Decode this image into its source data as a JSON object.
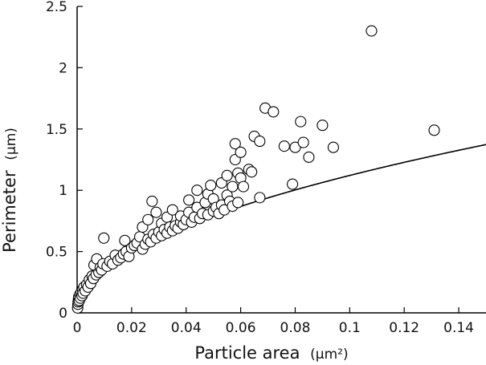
{
  "chart_data": {
    "type": "scatter",
    "title": "",
    "xlabel": "Particle area",
    "xlabel_unit": "(µm²)",
    "ylabel": "Perimeter",
    "ylabel_unit": "(µm)",
    "xlim": [
      0,
      0.15
    ],
    "ylim": [
      0,
      2.5
    ],
    "x_ticks": [
      0,
      0.02,
      0.04,
      0.06,
      0.08,
      0.1,
      0.12,
      0.14
    ],
    "x_tick_labels": [
      "0",
      "0.02",
      "0.04",
      "0.06",
      "0.08",
      "0.1",
      "0.12",
      "0.14"
    ],
    "y_ticks": [
      0,
      0.5,
      1,
      1.5,
      2,
      2.5
    ],
    "y_tick_labels": [
      "0",
      "0.5",
      "1",
      "1.5",
      "2",
      "2.5"
    ],
    "grid": false,
    "series": [
      {
        "marker": "open-circle",
        "points": [
          [
            0.0002,
            0.04
          ],
          [
            0.0003,
            0.07
          ],
          [
            0.0004,
            0.09
          ],
          [
            0.0005,
            0.11
          ],
          [
            0.0006,
            0.13
          ],
          [
            0.0008,
            0.1
          ],
          [
            0.001,
            0.15
          ],
          [
            0.0012,
            0.12
          ],
          [
            0.0015,
            0.17
          ],
          [
            0.0018,
            0.14
          ],
          [
            0.002,
            0.19
          ],
          [
            0.0022,
            0.16
          ],
          [
            0.0025,
            0.21
          ],
          [
            0.003,
            0.18
          ],
          [
            0.0035,
            0.23
          ],
          [
            0.004,
            0.21
          ],
          [
            0.0045,
            0.27
          ],
          [
            0.005,
            0.24
          ],
          [
            0.0055,
            0.3
          ],
          [
            0.006,
            0.28
          ],
          [
            0.0062,
            0.39
          ],
          [
            0.007,
            0.31
          ],
          [
            0.0072,
            0.44
          ],
          [
            0.008,
            0.33
          ],
          [
            0.0085,
            0.37
          ],
          [
            0.009,
            0.35
          ],
          [
            0.0095,
            0.4
          ],
          [
            0.0098,
            0.61
          ],
          [
            0.011,
            0.38
          ],
          [
            0.012,
            0.42
          ],
          [
            0.013,
            0.4
          ],
          [
            0.014,
            0.47
          ],
          [
            0.015,
            0.43
          ],
          [
            0.016,
            0.45
          ],
          [
            0.017,
            0.48
          ],
          [
            0.0175,
            0.59
          ],
          [
            0.018,
            0.5
          ],
          [
            0.019,
            0.46
          ],
          [
            0.02,
            0.53
          ],
          [
            0.021,
            0.55
          ],
          [
            0.022,
            0.57
          ],
          [
            0.023,
            0.62
          ],
          [
            0.024,
            0.52
          ],
          [
            0.024,
            0.7
          ],
          [
            0.025,
            0.56
          ],
          [
            0.026,
            0.6
          ],
          [
            0.026,
            0.76
          ],
          [
            0.027,
            0.58
          ],
          [
            0.0275,
            0.91
          ],
          [
            0.028,
            0.64
          ],
          [
            0.029,
            0.61
          ],
          [
            0.029,
            0.82
          ],
          [
            0.03,
            0.66
          ],
          [
            0.031,
            0.63
          ],
          [
            0.031,
            0.73
          ],
          [
            0.032,
            0.68
          ],
          [
            0.033,
            0.65
          ],
          [
            0.033,
            0.78
          ],
          [
            0.034,
            0.7
          ],
          [
            0.035,
            0.67
          ],
          [
            0.035,
            0.84
          ],
          [
            0.036,
            0.71
          ],
          [
            0.037,
            0.69
          ],
          [
            0.038,
            0.74
          ],
          [
            0.038,
            0.79
          ],
          [
            0.039,
            0.72
          ],
          [
            0.04,
            0.76
          ],
          [
            0.041,
            0.82
          ],
          [
            0.041,
            0.92
          ],
          [
            0.042,
            0.74
          ],
          [
            0.043,
            0.78
          ],
          [
            0.044,
            0.86
          ],
          [
            0.044,
            1.0
          ],
          [
            0.045,
            0.77
          ],
          [
            0.046,
            0.81
          ],
          [
            0.047,
            0.9
          ],
          [
            0.048,
            0.8
          ],
          [
            0.048,
            0.97
          ],
          [
            0.049,
            1.04
          ],
          [
            0.05,
            0.83
          ],
          [
            0.05,
            0.93
          ],
          [
            0.051,
            0.86
          ],
          [
            0.052,
            0.81
          ],
          [
            0.053,
            0.88
          ],
          [
            0.053,
            1.06
          ],
          [
            0.054,
            0.84
          ],
          [
            0.055,
            0.96
          ],
          [
            0.055,
            1.12
          ],
          [
            0.056,
            0.91
          ],
          [
            0.057,
            0.87
          ],
          [
            0.057,
            1.03
          ],
          [
            0.058,
            1.25
          ],
          [
            0.058,
            1.38
          ],
          [
            0.059,
            1.14
          ],
          [
            0.059,
            0.9
          ],
          [
            0.06,
            1.1
          ],
          [
            0.06,
            1.31
          ],
          [
            0.061,
            1.03
          ],
          [
            0.063,
            1.17
          ],
          [
            0.064,
            1.15
          ],
          [
            0.065,
            1.44
          ],
          [
            0.067,
            0.94
          ],
          [
            0.067,
            1.4
          ],
          [
            0.069,
            1.67
          ],
          [
            0.072,
            1.64
          ],
          [
            0.076,
            1.36
          ],
          [
            0.079,
            1.05
          ],
          [
            0.08,
            1.35
          ],
          [
            0.082,
            1.56
          ],
          [
            0.083,
            1.39
          ],
          [
            0.085,
            1.27
          ],
          [
            0.09,
            1.53
          ],
          [
            0.094,
            1.35
          ],
          [
            0.108,
            2.3
          ],
          [
            0.131,
            1.49
          ]
        ]
      }
    ],
    "fit_curve": {
      "type": "line",
      "formula": "perimeter = 2*sqrt(pi*area)"
    }
  }
}
